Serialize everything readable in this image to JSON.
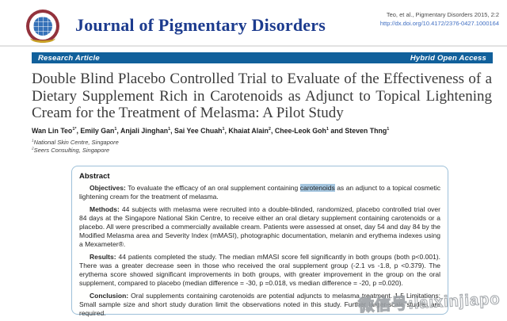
{
  "colors": {
    "journal_title_navy": "#1c3b8e",
    "banner_blue": "#11609b",
    "doi_link_blue": "#3f6ec2",
    "abstract_border_blue": "#9dc0d9",
    "highlight_blue": "#a6c7e0"
  },
  "header": {
    "journal_title": "Journal of Pigmentary Disorders",
    "citation_line": "Teo, et al., Pigmentary Disorders 2015, 2:2",
    "doi_url": "http://dx.doi.org/10.4172/2376-0427.1000164",
    "logo_icon": "publisher-globe-emblem"
  },
  "banner": {
    "article_type": "Research Article",
    "access_type": "Hybrid Open Access"
  },
  "article": {
    "title": "Double Blind Placebo Controlled Trial to Evaluate of the Effectiveness of a Dietary Supplement Rich in Carotenoids as Adjunct to Topical Lightening Cream for the Treatment of Melasma: A Pilot Study",
    "authors": [
      {
        "name": "Wan Lin Teo",
        "sup": "1*"
      },
      {
        "name": "Emily Gan",
        "sup": "1"
      },
      {
        "name": "Anjali Jinghan",
        "sup": "1"
      },
      {
        "name": "Sai Yee Chuah",
        "sup": "1"
      },
      {
        "name": "Khaiat Alain",
        "sup": "2"
      },
      {
        "name": "Chee-Leok Goh",
        "sup": "1"
      },
      {
        "name": "Steven Thng",
        "sup": "1"
      }
    ],
    "author_separator": ", ",
    "author_last_separator": " and ",
    "affiliations": [
      {
        "sup": "1",
        "text": "National Skin Centre, Singapore"
      },
      {
        "sup": "2",
        "text": "Seers Consulting, Singapore"
      }
    ]
  },
  "abstract": {
    "heading": "Abstract",
    "paragraphs": [
      {
        "label": "Objectives:",
        "segments": [
          {
            "text": "To evaluate the efficacy of an oral supplement containing "
          },
          {
            "text": "carotenoids",
            "highlight": true
          },
          {
            "text": " as an adjunct to a topical cosmetic lightening cream for the treatment of melasma."
          }
        ]
      },
      {
        "label": "Methods:",
        "segments": [
          {
            "text": "44 subjects with melasma were recruited into a double-blinded, randomized, placebo controlled trial over 84 days at the Singapore National Skin Centre, to receive either an oral dietary supplement containing carotenoids or a placebo. All were prescribed a commercially available cream. Patients were assessed at onset, day 54 and day 84 by the Modified Melasma area and Severity Index (mMASI), photographic documentation, melanin and erythema indexes using a Mexameter®."
          }
        ]
      },
      {
        "label": "Results:",
        "segments": [
          {
            "text": "44 patients completed the study. The median mMASI score fell significantly in both groups (both p<0.001). There was a greater decrease seen in those who received the oral supplement group (-2.1 vs -1.8, p <0.379). The erythema score showed significant improvements in both groups, with greater improvement in the group on the oral supplement, compared to placebo (median difference = -30, p =0.018, vs median difference = -20, p =0.020)."
          }
        ]
      },
      {
        "label": "Conclusion:",
        "segments": [
          {
            "text": "Oral supplements containing carotenoids are potential adjuncts to melasma treatment. 1,5 Limitations: Small sample size and short study duration limit the observations noted in this study. Further larger-scale studies are required."
          }
        ]
      }
    ]
  },
  "watermark": {
    "text": "微信号:laixinjiapo"
  }
}
